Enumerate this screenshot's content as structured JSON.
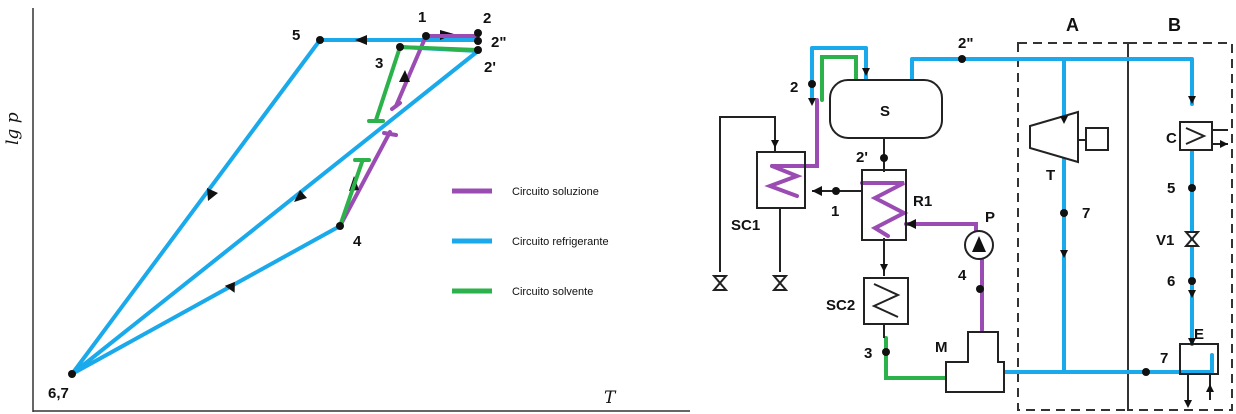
{
  "left_diagram": {
    "y_axis_label": "lg p",
    "x_axis_label": "T",
    "points": {
      "p1": "1",
      "p2": "2",
      "p2pp": "2\"",
      "p2p": "2'",
      "p3": "3",
      "p4": "4",
      "p5": "5",
      "p67": "6,7"
    },
    "legend": [
      {
        "label": "Circuito soluzione",
        "color": "#9b4cb3"
      },
      {
        "label": "Circuito refrigerante",
        "color": "#1aa9ea"
      },
      {
        "label": "Circuito solvente",
        "color": "#2cb24a"
      }
    ]
  },
  "right_diagram": {
    "zones": {
      "a": "A",
      "b": "B"
    },
    "components": {
      "separator": "S",
      "regenerator": "R1",
      "cooler1": "SC1",
      "cooler2": "SC2",
      "pump": "P",
      "mixer": "M",
      "turbine": "T",
      "condenser": "C",
      "valve": "V1",
      "evaporator": "E"
    },
    "points": {
      "p2pp": "2\"",
      "p2": "2",
      "p2p": "2'",
      "p1": "1",
      "p3": "3",
      "p4": "4",
      "p5": "5",
      "p6": "6",
      "p7a": "7",
      "p7b": "7"
    }
  }
}
